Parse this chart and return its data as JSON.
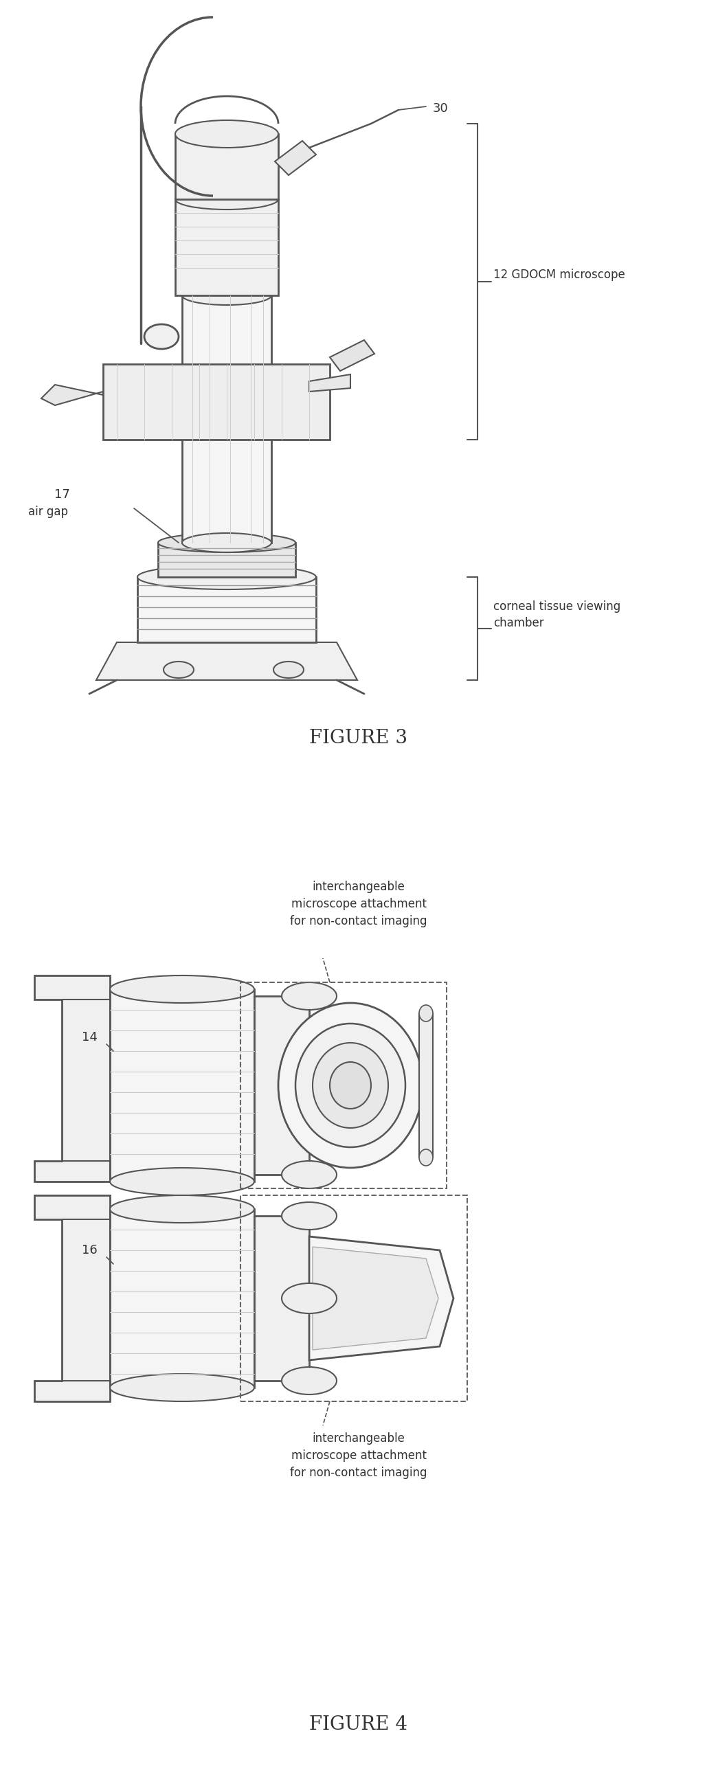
{
  "fig_width": 10.45,
  "fig_height": 25.97,
  "bg_color": "#ffffff",
  "line_color": "#555555",
  "text_color": "#333333",
  "fig3_title": "FIGURE 3",
  "fig4_title": "FIGURE 4",
  "label_30": "30",
  "label_12": "12 GDOCM microscope",
  "label_17": "17",
  "label_air_gap": "air gap",
  "label_corneal": "corneal tissue viewing\nchamber",
  "label_14": "14",
  "label_16": "16",
  "label_interchangeable": "interchangeable\nmicroscope attachment\nfor non-contact imaging"
}
